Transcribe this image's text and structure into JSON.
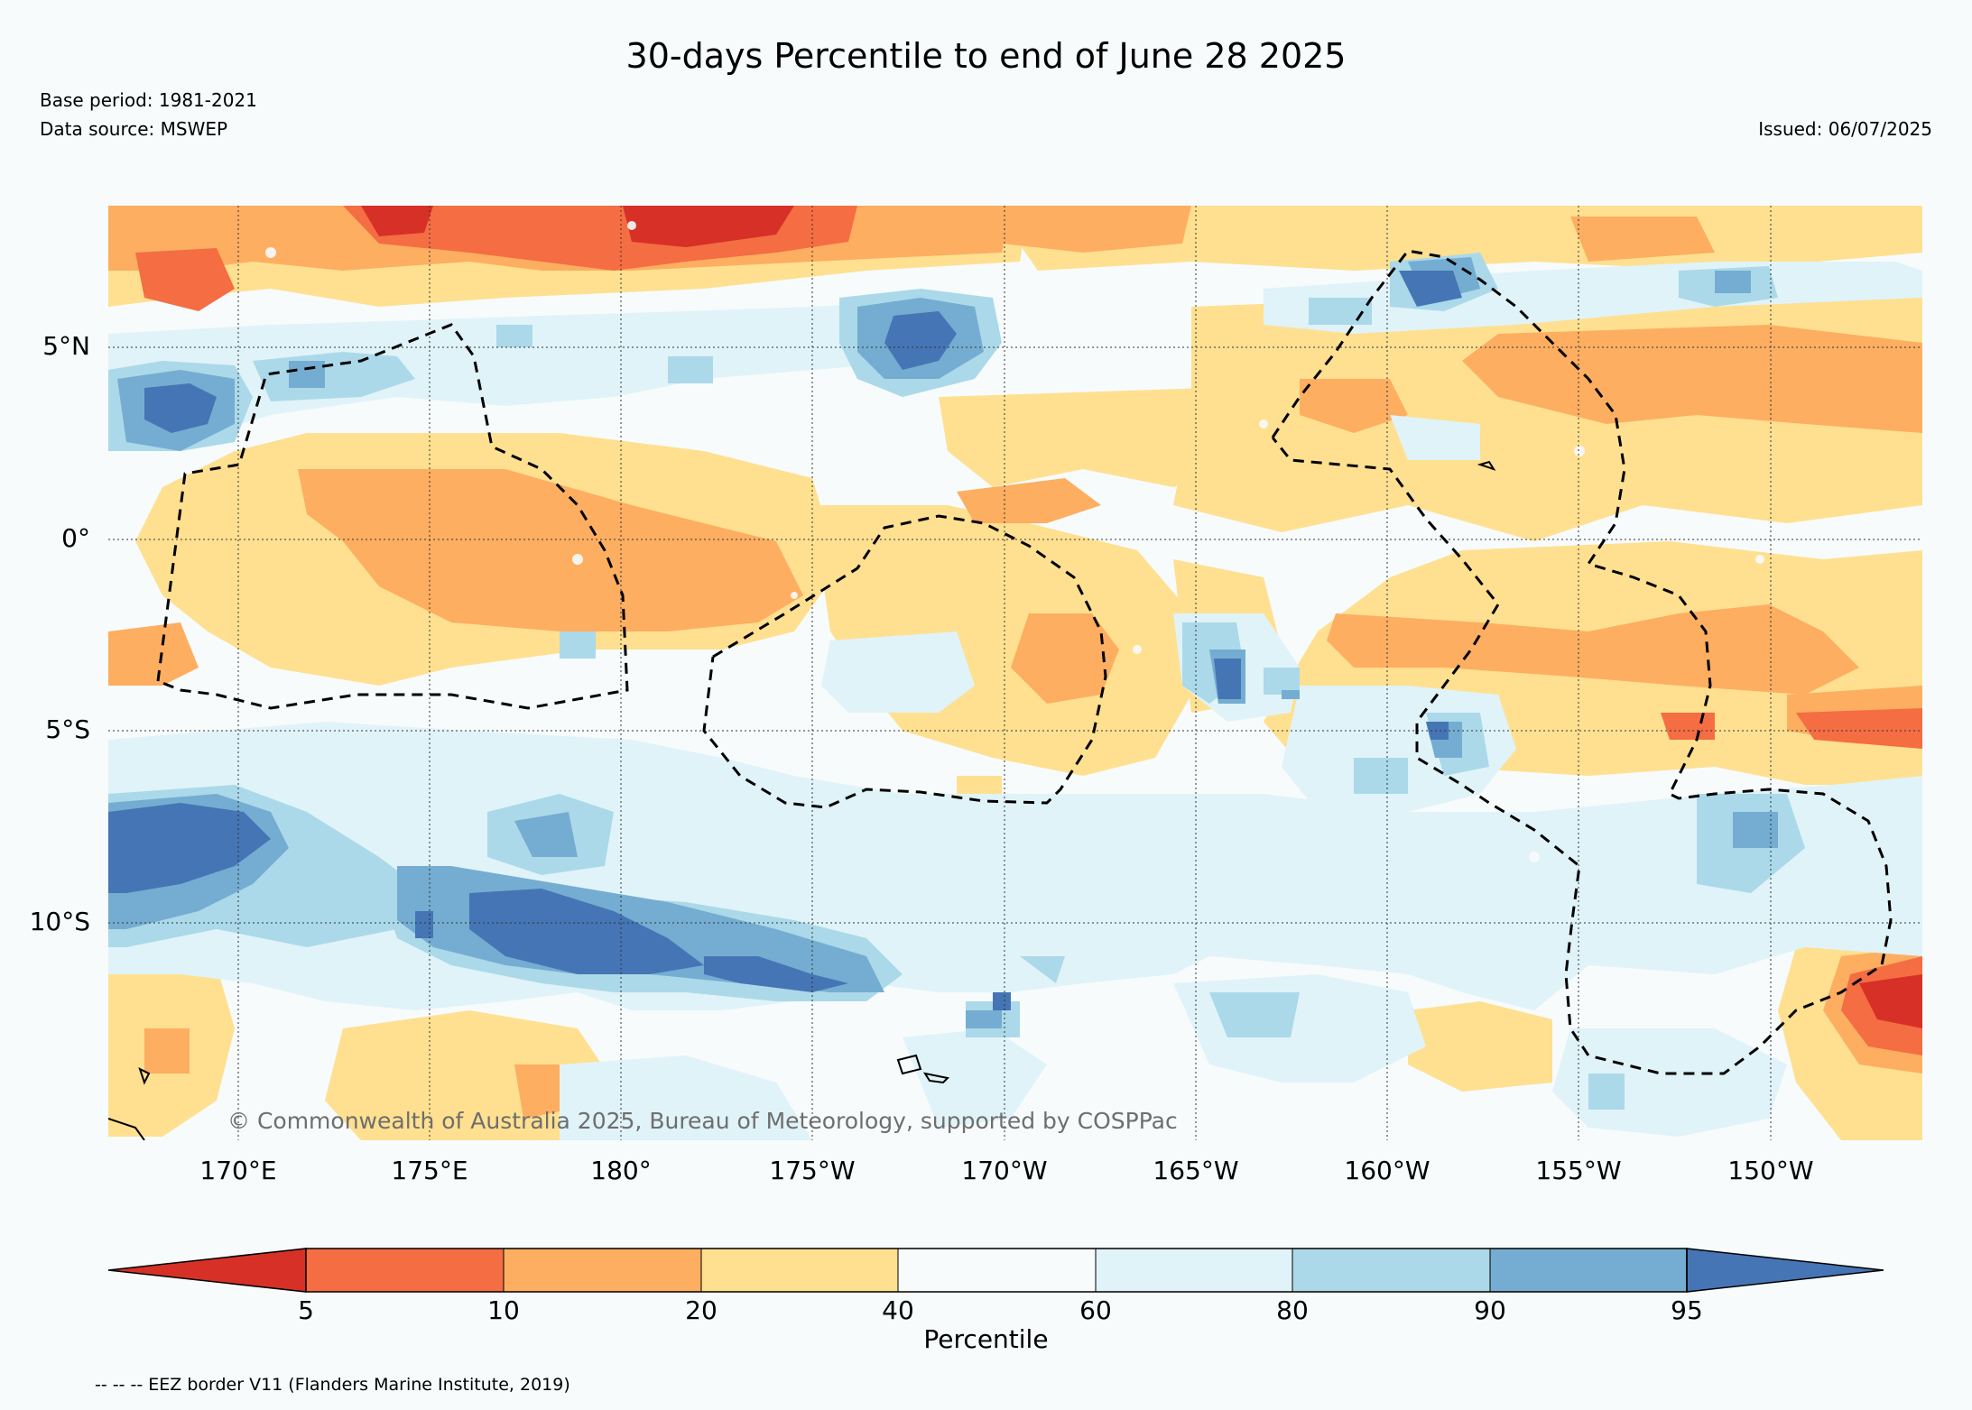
{
  "title": "30-days Percentile to end of June 28 2025",
  "base_period": "Base period: 1981-2021",
  "data_source": "Data source: MSWEP",
  "issued": "Issued: 06/07/2025",
  "map": {
    "lat_labels": [
      "5°N",
      "0°",
      "5°S",
      "10°S"
    ],
    "lon_labels": [
      "170°E",
      "175°E",
      "180°",
      "175°W",
      "170°W",
      "165°W",
      "160°W",
      "155°W",
      "150°W"
    ],
    "copyright": "© Commonwealth of Australia 2025, Bureau of Meteorology, supported by COSPPac",
    "boundary_line": "dashed black",
    "gridlines": "dotted"
  },
  "colorbar": {
    "label": "Percentile",
    "ticks": [
      "5",
      "10",
      "20",
      "40",
      "60",
      "80",
      "90",
      "95"
    ],
    "colors": [
      "#d73027",
      "#f46d43",
      "#fdae61",
      "#fee090",
      "#f7fbfc",
      "#e0f3f8",
      "#abd9e9",
      "#74add1",
      "#4575b4"
    ],
    "extend": "both"
  },
  "footnote": "-- -- -- EEZ border V11 (Flanders Marine Institute, 2019)"
}
